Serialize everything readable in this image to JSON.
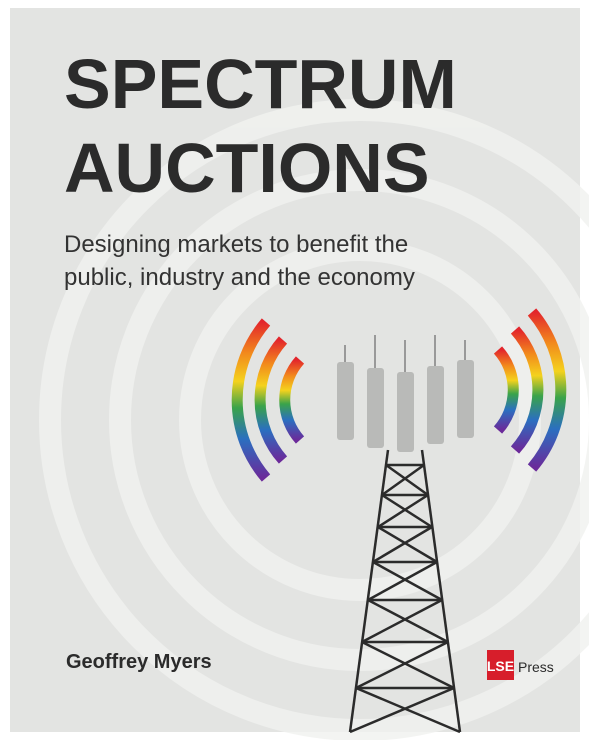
{
  "cover": {
    "title": [
      "SPECTRUM",
      "AUCTIONS"
    ],
    "subtitle": [
      "Designing markets to benefit the",
      "public, industry and the economy"
    ],
    "author": "Geoffrey Myers",
    "publisher": {
      "logo": "LSE",
      "name": "Press"
    }
  }
}
